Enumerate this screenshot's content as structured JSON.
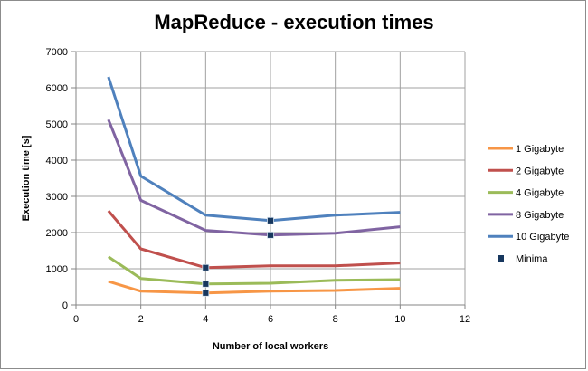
{
  "chart_data": {
    "type": "line",
    "title": "MapReduce - execution times",
    "xlabel": "Number of local workers",
    "ylabel": "Execution time [s]",
    "xlim": [
      0,
      12
    ],
    "ylim": [
      0,
      7000
    ],
    "x_ticks": [
      0,
      2,
      4,
      6,
      8,
      10,
      12
    ],
    "y_ticks": [
      0,
      1000,
      2000,
      3000,
      4000,
      5000,
      6000,
      7000
    ],
    "x_tick_labels": [
      "0",
      "2",
      "4",
      "6",
      "8",
      "10",
      "12"
    ],
    "y_tick_labels": [
      "0",
      "1000",
      "2000",
      "3000",
      "4000",
      "5000",
      "6000",
      "7000"
    ],
    "grid": "vertical and horizontal major gridlines",
    "legend_position": "right",
    "x": [
      1,
      2,
      4,
      6,
      8,
      10
    ],
    "series": [
      {
        "name": "1 Gigabyte",
        "color": "#F79646",
        "values": [
          650,
          380,
          330,
          380,
          400,
          460
        ]
      },
      {
        "name": "2 Gigabyte",
        "color": "#C0504D",
        "values": [
          2600,
          1550,
          1030,
          1080,
          1080,
          1160
        ]
      },
      {
        "name": "4 Gigabyte",
        "color": "#9BBB59",
        "values": [
          1330,
          730,
          580,
          600,
          680,
          700
        ]
      },
      {
        "name": "8 Gigabyte",
        "color": "#8064A2",
        "values": [
          5120,
          2890,
          2060,
          1930,
          1980,
          2160
        ]
      },
      {
        "name": "10 Gigabyte",
        "color": "#4F81BD",
        "values": [
          6300,
          3560,
          2480,
          2330,
          2480,
          2560
        ]
      }
    ],
    "minima": {
      "name": "Minima",
      "color": "#17375E",
      "points": [
        {
          "x": 4,
          "y": 330
        },
        {
          "x": 4,
          "y": 1030
        },
        {
          "x": 4,
          "y": 580
        },
        {
          "x": 6,
          "y": 1930
        },
        {
          "x": 6,
          "y": 2330
        }
      ]
    }
  }
}
